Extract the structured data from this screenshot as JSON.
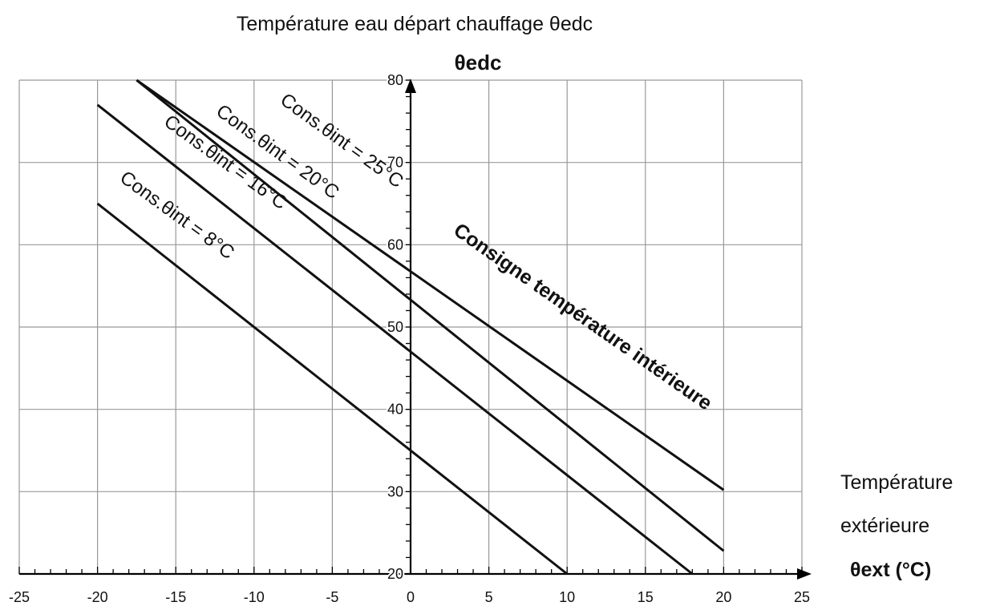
{
  "chart_data": {
    "type": "line",
    "title": "Température eau départ chauffage θedc",
    "ylabel": "θedc",
    "xlabel_lines": [
      "Température",
      "extérieure",
      "θext (°C)"
    ],
    "annotation": "Consigne température intérieure",
    "xlim": [
      -25,
      25
    ],
    "ylim": [
      20,
      80
    ],
    "x_ticks": [
      -25,
      -20,
      -15,
      -10,
      -5,
      0,
      5,
      10,
      15,
      20,
      25
    ],
    "y_ticks": [
      20,
      30,
      40,
      50,
      60,
      70,
      80
    ],
    "grid": true,
    "series": [
      {
        "name": "Cons.θint = 25°C",
        "x": [
          -17.5,
          20
        ],
        "y": [
          80,
          30.2
        ]
      },
      {
        "name": "Cons.θint = 20°C",
        "x": [
          -17.5,
          20
        ],
        "y": [
          80,
          22.8
        ]
      },
      {
        "name": "Cons.θint = 16°C",
        "x": [
          -20,
          18
        ],
        "y": [
          77,
          20
        ]
      },
      {
        "name": "Cons.θint = 8°C",
        "x": [
          -20,
          10
        ],
        "y": [
          65,
          20
        ]
      }
    ]
  }
}
